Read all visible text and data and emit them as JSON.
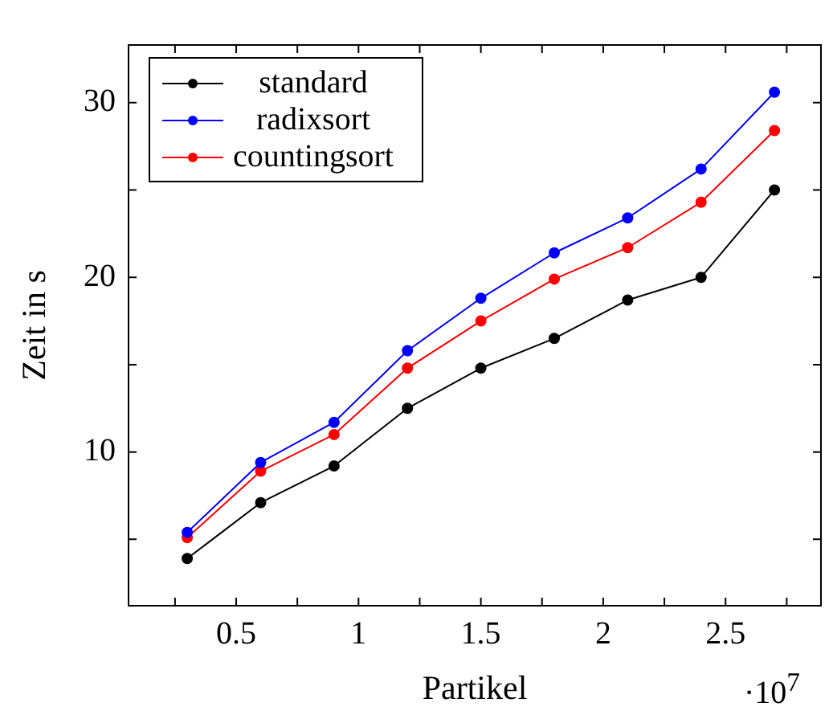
{
  "chart_data": {
    "type": "line",
    "xlabel": "Partikel",
    "ylabel": "Zeit in s",
    "annotations": [
      "·10$^{7}$"
    ],
    "x": [
      0.3,
      0.6,
      0.9,
      1.2,
      1.5,
      1.8,
      2.1,
      2.4,
      2.7
    ],
    "series": [
      {
        "name": "standard",
        "color": "#000000",
        "values": [
          3.9,
          7.1,
          9.2,
          12.5,
          14.8,
          16.5,
          18.7,
          20.0,
          25.0
        ]
      },
      {
        "name": "radixsort",
        "color": "#0000ff",
        "values": [
          5.4,
          9.4,
          11.7,
          15.8,
          18.8,
          21.4,
          23.4,
          26.2,
          30.6
        ]
      },
      {
        "name": "countingsort",
        "color": "#ff0000",
        "values": [
          5.1,
          8.9,
          11.0,
          14.8,
          17.5,
          19.9,
          21.7,
          24.3,
          28.4
        ]
      }
    ],
    "xlim": [
      0.06,
      2.89
    ],
    "xticks": [
      {
        "value": 0.25,
        "label": null
      },
      0.5,
      {
        "value": 0.75,
        "label": null
      },
      1,
      {
        "value": 1.25,
        "label": null
      },
      1.5,
      {
        "value": 1.75,
        "label": null
      },
      2,
      {
        "value": 2.25,
        "label": null
      },
      2.5,
      {
        "value": 2.75,
        "label": null
      }
    ],
    "ylim": [
      1.2,
      33.3
    ],
    "yticks": [
      {
        "value": 5,
        "label": null
      },
      10,
      {
        "value": 15,
        "label": null
      },
      20,
      {
        "value": 25,
        "label": null
      },
      30
    ],
    "legend": "top left",
    "marker": "circle",
    "line_style": "solid"
  }
}
